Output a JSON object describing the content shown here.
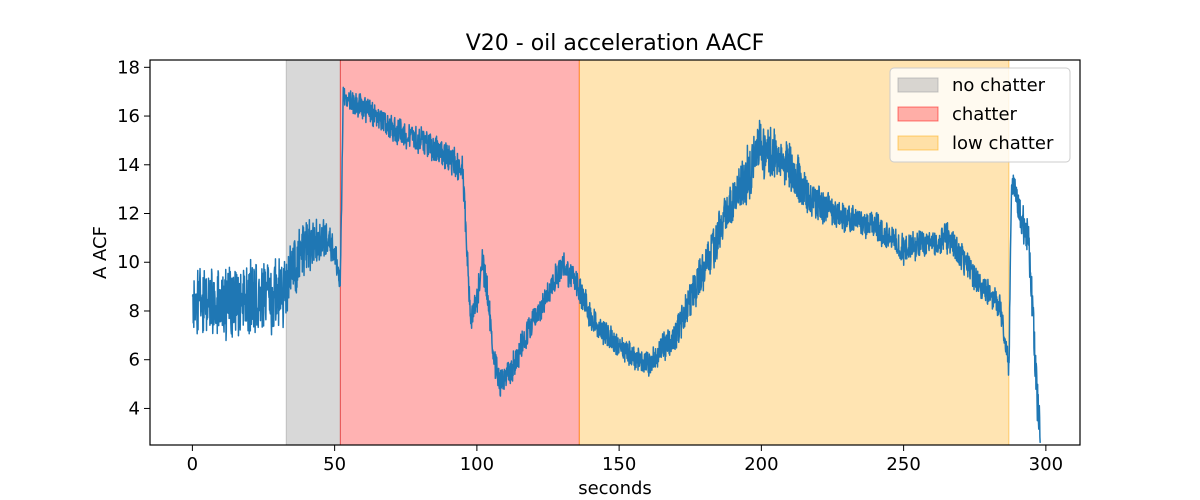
{
  "chart_data": {
    "type": "line",
    "title": "V20 - oil acceleration AACF",
    "xlabel": "seconds",
    "ylabel": "A ACF",
    "xlim": [
      -14.9,
      312
    ],
    "ylim": [
      2.5,
      18.3
    ],
    "x_ticks": [
      0,
      50,
      100,
      150,
      200,
      250,
      300
    ],
    "y_ticks": [
      4,
      6,
      8,
      10,
      12,
      14,
      16,
      18
    ],
    "grid": false,
    "legend_position": "top-right",
    "regions": [
      {
        "name": "no chatter",
        "start": 33,
        "end": 52,
        "color": "#a9a9a9",
        "alpha": 0.45
      },
      {
        "name": "chatter",
        "start": 52,
        "end": 136,
        "color": "#ff0000",
        "alpha": 0.3
      },
      {
        "name": "low chatter",
        "start": 136,
        "end": 287,
        "color": "#ffa500",
        "alpha": 0.3
      }
    ],
    "series": [
      {
        "color": "#1f77b4",
        "noise_amplitude": [
          [
            0,
            1.5
          ],
          [
            33,
            1.5
          ],
          [
            52,
            0.5
          ],
          [
            95,
            0.6
          ],
          [
            136,
            0.6
          ],
          [
            160,
            0.5
          ],
          [
            200,
            1.2
          ],
          [
            230,
            0.6
          ],
          [
            270,
            0.6
          ],
          [
            287,
            0.5
          ],
          [
            298,
            1.0
          ]
        ],
        "points": [
          [
            0,
            8.3
          ],
          [
            10,
            8.3
          ],
          [
            20,
            8.5
          ],
          [
            32,
            8.7
          ],
          [
            33,
            9.2
          ],
          [
            40,
            10.6
          ],
          [
            46,
            11.0
          ],
          [
            50,
            10.5
          ],
          [
            52,
            9.2
          ],
          [
            53,
            16.8
          ],
          [
            60,
            16.3
          ],
          [
            70,
            15.5
          ],
          [
            80,
            15.0
          ],
          [
            90,
            14.3
          ],
          [
            95,
            13.8
          ],
          [
            97,
            9.5
          ],
          [
            98,
            7.5
          ],
          [
            100,
            8.5
          ],
          [
            102,
            10.0
          ],
          [
            104,
            8.5
          ],
          [
            106,
            6.0
          ],
          [
            108,
            5.0
          ],
          [
            112,
            5.5
          ],
          [
            118,
            7.2
          ],
          [
            125,
            8.8
          ],
          [
            130,
            9.8
          ],
          [
            134,
            9.4
          ],
          [
            136,
            8.8
          ],
          [
            140,
            7.8
          ],
          [
            150,
            6.5
          ],
          [
            160,
            5.8
          ],
          [
            170,
            7.0
          ],
          [
            180,
            9.8
          ],
          [
            190,
            12.5
          ],
          [
            200,
            14.7
          ],
          [
            210,
            14.0
          ],
          [
            215,
            13.0
          ],
          [
            220,
            12.3
          ],
          [
            230,
            11.8
          ],
          [
            240,
            11.5
          ],
          [
            250,
            10.5
          ],
          [
            260,
            10.8
          ],
          [
            266,
            11.0
          ],
          [
            270,
            10.3
          ],
          [
            275,
            9.4
          ],
          [
            280,
            8.7
          ],
          [
            284,
            8.2
          ],
          [
            287,
            5.6
          ],
          [
            288,
            13.5
          ],
          [
            291,
            12.0
          ],
          [
            294,
            10.8
          ],
          [
            296,
            6.5
          ],
          [
            297,
            4.2
          ],
          [
            298,
            3.5
          ]
        ]
      }
    ]
  }
}
